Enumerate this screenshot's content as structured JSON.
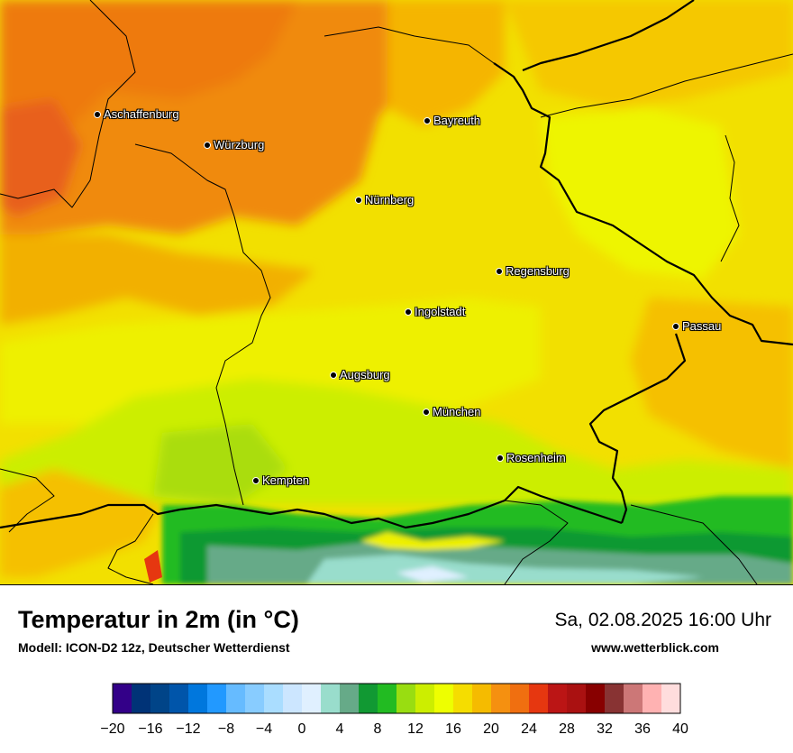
{
  "map": {
    "cities": [
      {
        "name": "Aschaffenburg"
      },
      {
        "name": "Würzburg"
      },
      {
        "name": "Bayreuth"
      },
      {
        "name": "Nürnberg"
      },
      {
        "name": "Regensburg"
      },
      {
        "name": "Ingolstadt"
      },
      {
        "name": "Passau"
      },
      {
        "name": "Augsburg"
      },
      {
        "name": "München"
      },
      {
        "name": "Rosenheim"
      },
      {
        "name": "Kempten"
      }
    ]
  },
  "header": {
    "title": "Temperatur in 2m (in °C)",
    "subtitle": "Modell: ICON-D2 12z, Deutscher Wetterdienst",
    "datetime": "Sa, 02.08.2025 16:00 Uhr",
    "website": "www.wetterblick.com"
  },
  "legend": {
    "min": -20,
    "max": 40,
    "step": 2,
    "tick_labels": [
      "−20",
      "−16",
      "−12",
      "−8",
      "−4",
      "0",
      "4",
      "8",
      "12",
      "16",
      "20",
      "24",
      "28",
      "32",
      "36",
      "40"
    ],
    "colors": [
      "#330088",
      "#003377",
      "#004488",
      "#0055aa",
      "#0077dd",
      "#2299ff",
      "#66bbff",
      "#88ccff",
      "#aaddff",
      "#cce6ff",
      "#e0f0ff",
      "#99ddcc",
      "#66aa88",
      "#119933",
      "#22bb22",
      "#99dd11",
      "#ccee00",
      "#eeff00",
      "#f5dd00",
      "#f5bb00",
      "#f59010",
      "#f06f10",
      "#e63710",
      "#bb1515",
      "#aa1111",
      "#880000",
      "#883333",
      "#cc7777",
      "#ffb2b2",
      "#ffdddd"
    ]
  }
}
